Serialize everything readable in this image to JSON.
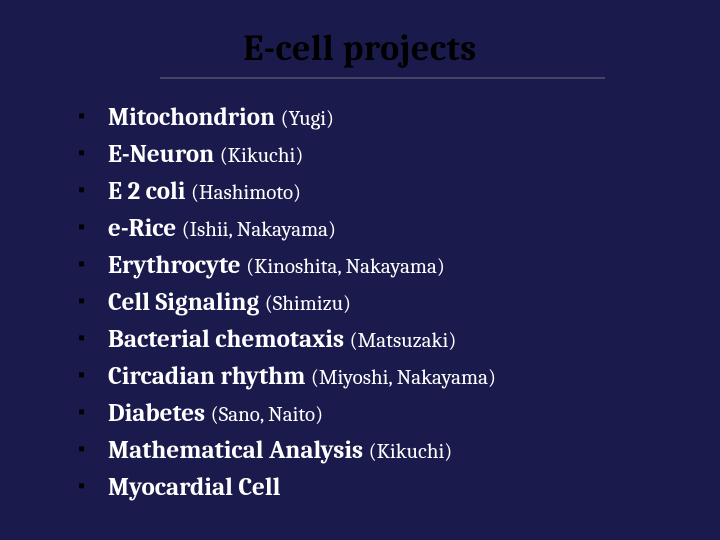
{
  "slide": {
    "title": "E-cell projects",
    "background_color": "#1a1a4d",
    "title_color": "#000000",
    "bullet_color": "#000000",
    "text_color": "#ffffff",
    "divider_color": "#444466",
    "title_fontsize": 36,
    "body_fontsize": 25,
    "names_fontsize": 21,
    "items": [
      {
        "label": "Mitochondrion",
        "names": "(Yugi)"
      },
      {
        "label": "E-Neuron",
        "names": "(Kikuchi)"
      },
      {
        "label": "E 2 coli",
        "names": "(Hashimoto)"
      },
      {
        "label": "e-Rice",
        "names": "(Ishii, Nakayama)"
      },
      {
        "label": "Erythrocyte",
        "names": "(Kinoshita, Nakayama)"
      },
      {
        "label": "Cell Signaling",
        "names": "(Shimizu)"
      },
      {
        "label": "Bacterial chemotaxis",
        "names": "(Matsuzaki)"
      },
      {
        "label": "Circadian rhythm",
        "names": "(Miyoshi, Nakayama)"
      },
      {
        "label": "Diabetes",
        "names": "(Sano, Naito)"
      },
      {
        "label": "Mathematical Analysis",
        "names": "(Kikuchi)"
      },
      {
        "label": "Myocardial Cell",
        "names": ""
      }
    ]
  }
}
